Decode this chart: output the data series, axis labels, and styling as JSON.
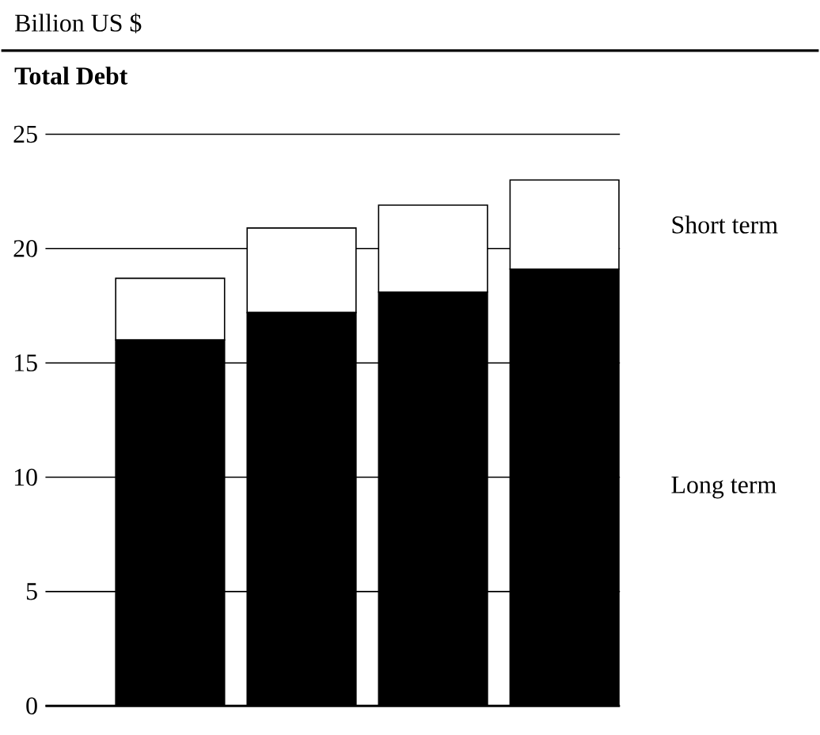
{
  "chart_data": {
    "type": "bar",
    "stacked": true,
    "title": "Total Debt",
    "ylabel": "Billion US $",
    "categories": [
      null,
      null,
      null,
      null
    ],
    "series": [
      {
        "name": "Long term",
        "color": "#000000",
        "values": [
          16.0,
          17.2,
          18.1,
          19.1
        ]
      },
      {
        "name": "Short term",
        "color": "#ffffff",
        "values": [
          2.7,
          3.7,
          3.8,
          3.9
        ]
      }
    ],
    "ylim": [
      0,
      25
    ],
    "yticks": [
      0,
      5,
      10,
      15,
      20,
      25
    ],
    "grid": "y"
  }
}
